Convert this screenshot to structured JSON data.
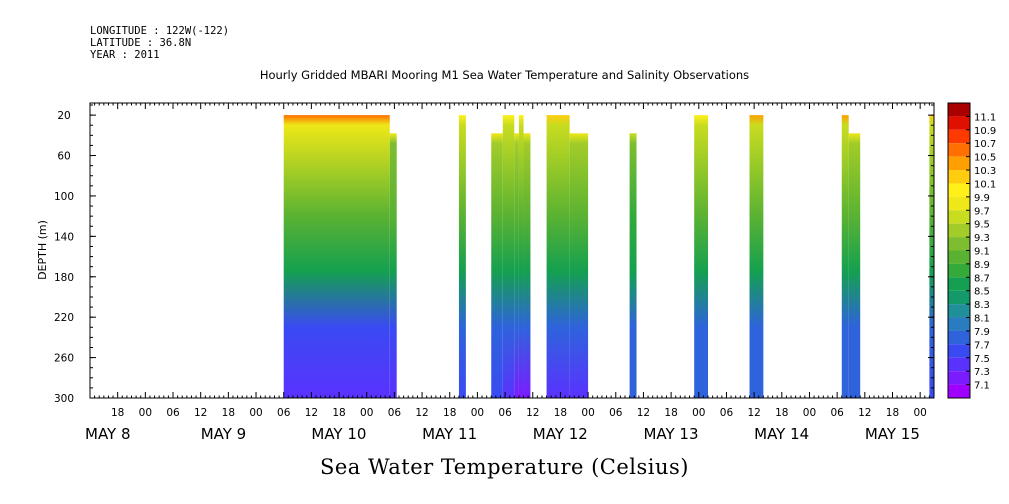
{
  "header": {
    "longitude": "LONGITUDE : 122W(-122)",
    "latitude": "LATITUDE : 36.8N",
    "year": "YEAR : 2011"
  },
  "chart_data": {
    "type": "heatmap",
    "title": "Hourly Gridded MBARI Mooring M1 Sea Water Temperature and Salinity Observations",
    "xlabel": "",
    "ylabel": "DEPTH (m)",
    "bottom_label": "Sea Water Temperature (Celsius)",
    "x_range_hours": [
      0,
      183
    ],
    "x_origin": "2011-05-07 12:00",
    "y_range": [
      300,
      8
    ],
    "y_ticks": [
      20,
      60,
      100,
      140,
      180,
      220,
      260,
      300
    ],
    "hour_tick_labels": [
      "18",
      "00",
      "06",
      "12",
      "18",
      "00",
      "06",
      "12",
      "18",
      "00",
      "06",
      "12",
      "18",
      "00",
      "06",
      "12",
      "18",
      "00",
      "06",
      "12",
      "18",
      "00",
      "06",
      "12",
      "18",
      "00",
      "06",
      "12",
      "18",
      "00",
      "06",
      "12"
    ],
    "day_labels": [
      {
        "label": "MAY  8",
        "hour": 0
      },
      {
        "label": "MAY  9",
        "hour": 24
      },
      {
        "label": "MAY 10",
        "hour": 48
      },
      {
        "label": "MAY 11",
        "hour": 72
      },
      {
        "label": "MAY 12",
        "hour": 96
      },
      {
        "label": "MAY 13",
        "hour": 120
      },
      {
        "label": "MAY 14",
        "hour": 144
      },
      {
        "label": "MAY 15",
        "hour": 168
      }
    ],
    "colorbar": {
      "levels": [
        7.1,
        7.3,
        7.5,
        7.7,
        7.9,
        8.1,
        8.3,
        8.5,
        8.7,
        8.9,
        9.1,
        9.3,
        9.5,
        9.7,
        9.9,
        10.1,
        10.3,
        10.5,
        10.7,
        10.9,
        11.1
      ],
      "colors": [
        "#a000ff",
        "#7a1cff",
        "#5a32ff",
        "#3a4af2",
        "#2e63dc",
        "#2a7cc0",
        "#1f8f9a",
        "#13996a",
        "#14a050",
        "#33aa3a",
        "#5ab232",
        "#7dbe30",
        "#a2cc28",
        "#c8dc20",
        "#eee818",
        "#fff01a",
        "#ffcc10",
        "#ffa000",
        "#ff7000",
        "#ff3a00",
        "#e01000",
        "#aa0000"
      ]
    },
    "data_segments": [
      {
        "x_start": 42,
        "x_end": 65,
        "t_top": 10.5,
        "t_surface": 9.7,
        "t_mid": 9.0,
        "t_deep": 7.6,
        "t_bottom": 7.3,
        "top_depth": 20
      },
      {
        "x_start": 65,
        "x_end": 66.5,
        "t_top": 9.7,
        "t_surface": 9.2,
        "t_mid": 8.9,
        "t_deep": 7.6,
        "t_bottom": 7.3,
        "top_depth": 38
      },
      {
        "x_start": 80,
        "x_end": 81.5,
        "t_top": 10.0,
        "t_surface": 9.5,
        "t_mid": 8.9,
        "t_deep": 7.8,
        "t_bottom": 7.6,
        "top_depth": 20
      },
      {
        "x_start": 87,
        "x_end": 89.5,
        "t_top": 9.7,
        "t_surface": 9.4,
        "t_mid": 8.9,
        "t_deep": 7.8,
        "t_bottom": 7.5,
        "top_depth": 38
      },
      {
        "x_start": 89.5,
        "x_end": 92,
        "t_top": 10.0,
        "t_surface": 9.5,
        "t_mid": 8.9,
        "t_deep": 7.8,
        "t_bottom": 7.3,
        "top_depth": 20
      },
      {
        "x_start": 92,
        "x_end": 93,
        "t_top": 9.7,
        "t_surface": 9.4,
        "t_mid": 8.9,
        "t_deep": 7.8,
        "t_bottom": 7.2,
        "top_depth": 38
      },
      {
        "x_start": 93,
        "x_end": 94,
        "t_top": 10.0,
        "t_surface": 9.5,
        "t_mid": 8.9,
        "t_deep": 7.8,
        "t_bottom": 7.2,
        "top_depth": 20
      },
      {
        "x_start": 94,
        "x_end": 95.5,
        "t_top": 9.7,
        "t_surface": 9.4,
        "t_mid": 8.9,
        "t_deep": 7.8,
        "t_bottom": 7.2,
        "top_depth": 38
      },
      {
        "x_start": 99,
        "x_end": 104,
        "t_top": 10.1,
        "t_surface": 9.6,
        "t_mid": 8.9,
        "t_deep": 7.8,
        "t_bottom": 7.3,
        "top_depth": 20
      },
      {
        "x_start": 104,
        "x_end": 108,
        "t_top": 9.7,
        "t_surface": 9.3,
        "t_mid": 8.9,
        "t_deep": 7.8,
        "t_bottom": 7.4,
        "top_depth": 38
      },
      {
        "x_start": 117,
        "x_end": 118.5,
        "t_top": 9.6,
        "t_surface": 9.2,
        "t_mid": 8.8,
        "t_deep": 7.8,
        "t_bottom": 7.7,
        "top_depth": 38
      },
      {
        "x_start": 131,
        "x_end": 134,
        "t_top": 10.0,
        "t_surface": 9.5,
        "t_mid": 8.9,
        "t_deep": 7.8,
        "t_bottom": 7.7,
        "top_depth": 20
      },
      {
        "x_start": 143,
        "x_end": 146,
        "t_top": 10.3,
        "t_surface": 9.6,
        "t_mid": 8.9,
        "t_deep": 7.8,
        "t_bottom": 7.7,
        "top_depth": 20
      },
      {
        "x_start": 163,
        "x_end": 164.5,
        "t_top": 10.3,
        "t_surface": 9.5,
        "t_mid": 8.9,
        "t_deep": 7.8,
        "t_bottom": 7.7,
        "top_depth": 20
      },
      {
        "x_start": 164.5,
        "x_end": 167,
        "t_top": 9.7,
        "t_surface": 9.3,
        "t_mid": 8.9,
        "t_deep": 7.8,
        "t_bottom": 7.7,
        "top_depth": 38
      },
      {
        "x_start": 182,
        "x_end": 183,
        "t_top": 10.2,
        "t_surface": 9.5,
        "t_mid": 8.9,
        "t_deep": 7.8,
        "t_bottom": 7.6,
        "top_depth": 20
      }
    ]
  }
}
